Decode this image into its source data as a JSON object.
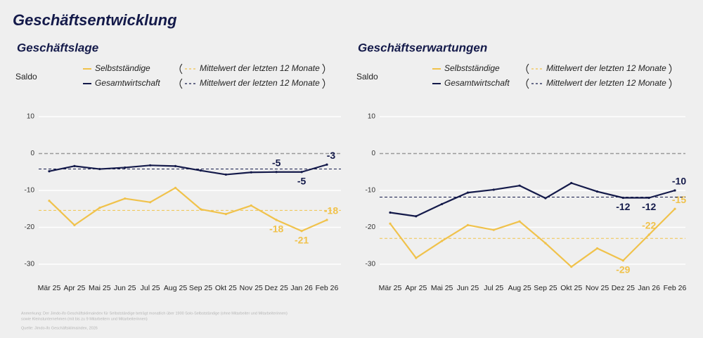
{
  "title": "Geschäftsentwicklung",
  "notes": [
    "Anmerkung: Der Jimdo-ifo Geschäftsklimaindex für Selbstständige beträgt monatlich über 1900 Solo-Selbstständige (ohne Mitarbeiter und Mitarbeiterinnen)",
    "sowie Kleinstunternehmen (mit bis zu 9 Mitarbeitern und Mitarbeiterinnen)",
    "Quelle: Jimdo-ifo Geschäftsklimaindex, 2026"
  ],
  "chart_data": [
    {
      "type": "line",
      "title": "Geschäftslage",
      "y_label": "Saldo",
      "categories": [
        "Mär 25",
        "Apr 25",
        "Mai 25",
        "Jun 25",
        "Jul 25",
        "Aug 25",
        "Sep 25",
        "Okt 25",
        "Nov 25",
        "Dez 25",
        "Jan 26",
        "Feb 26"
      ],
      "ylim": [
        -30,
        10
      ],
      "yticks": [
        10,
        0,
        -10,
        -20,
        -30
      ],
      "grid": true,
      "series": [
        {
          "name": "Selbstständige",
          "color": "#f0c24b",
          "values": [
            -12.8,
            -19.4,
            -14.7,
            -12.2,
            -13.2,
            -9.3,
            -15.1,
            -16.4,
            -14.1,
            -18,
            -21,
            -18
          ],
          "mean": -15.4,
          "mean_label": "Mittelwert der letzten 12 Monate",
          "label_points": [
            9,
            10,
            11
          ]
        },
        {
          "name": "Gesamtwirtschaft",
          "color": "#141a4a",
          "values": [
            -4.8,
            -3.4,
            -4.2,
            -3.8,
            -3.2,
            -3.4,
            -4.6,
            -5.7,
            -5.1,
            -5,
            -5,
            -3
          ],
          "mean": -4.2,
          "mean_label": "Mittelwert der letzten 12 Monate",
          "label_points": [
            9,
            10,
            11
          ]
        }
      ]
    },
    {
      "type": "line",
      "title": "Geschäftserwartungen",
      "y_label": "Saldo",
      "categories": [
        "Mär 25",
        "Apr 25",
        "Mai 25",
        "Jun 25",
        "Jul 25",
        "Aug 25",
        "Sep 25",
        "Okt 25",
        "Nov 25",
        "Dez 25",
        "Jan 26",
        "Feb 26"
      ],
      "ylim": [
        -30,
        10
      ],
      "yticks": [
        10,
        0,
        -10,
        -20,
        -30
      ],
      "grid": true,
      "series": [
        {
          "name": "Selbstständige",
          "color": "#f0c24b",
          "values": [
            -19,
            -28.3,
            -23.7,
            -19.4,
            -20.7,
            -18.4,
            -24.3,
            -30.7,
            -25.7,
            -29,
            -22,
            -15
          ],
          "mean": -23,
          "mean_label": "Mittelwert der letzten 12 Monate",
          "label_points": [
            9,
            10,
            11
          ]
        },
        {
          "name": "Gesamtwirtschaft",
          "color": "#141a4a",
          "values": [
            -16,
            -17,
            -13.7,
            -10.6,
            -9.8,
            -8.7,
            -12.1,
            -8,
            -10.3,
            -12,
            -12,
            -10
          ],
          "mean": -11.8,
          "mean_label": "Mittelwert der letzten 12 Monate",
          "label_points": [
            9,
            10,
            11
          ]
        }
      ]
    }
  ]
}
